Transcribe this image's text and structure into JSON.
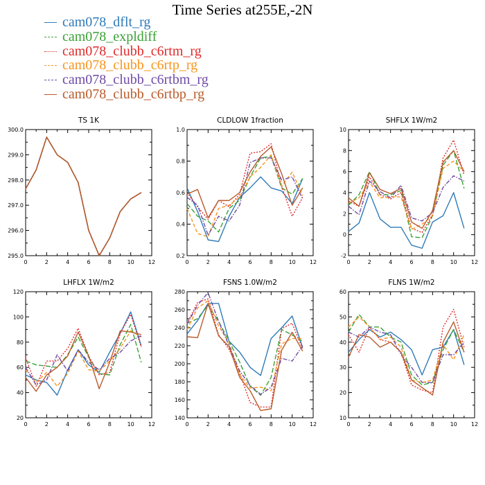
{
  "title": "Time Series at255E,-2N",
  "colors": {
    "cam078_dflt_rg": "#2f7ab8",
    "cam078_expldiff": "#3aa136",
    "cam078_clubb_c6rtm_rg": "#e12a2a",
    "cam078_clubb_c6rtp_rg": "#f7931e",
    "cam078_clubb_c6rtbm_rg": "#6f4aa6",
    "cam078_clubb_c6rtbp_rg": "#b85a2a"
  },
  "legend": [
    {
      "name": "cam078_dflt_rg",
      "color": "#2f7ab8",
      "dash": "solid"
    },
    {
      "name": "cam078_expldiff",
      "color": "#3aa136",
      "dash": "long-dash"
    },
    {
      "name": "cam078_clubb_c6rtm_rg",
      "color": "#e12a2a",
      "dash": "dot"
    },
    {
      "name": "cam078_clubb_c6rtp_rg",
      "color": "#f7931e",
      "dash": "dash"
    },
    {
      "name": "cam078_clubb_c6rtbm_rg",
      "color": "#6f4aa6",
      "dash": "dash-dot"
    },
    {
      "name": "cam078_clubb_c6rtbp_rg",
      "color": "#b85a2a",
      "dash": "solid"
    }
  ],
  "chart_data": [
    {
      "type": "line",
      "title": "TS   1K",
      "x": [
        0,
        1,
        2,
        3,
        4,
        5,
        6,
        7,
        8,
        9,
        10,
        11
      ],
      "xlim": [
        0,
        12
      ],
      "xticks": [
        0,
        2,
        4,
        6,
        8,
        10,
        12
      ],
      "ylim": [
        295.0,
        300.0
      ],
      "yticks": [
        "295.0",
        "296.0",
        "297.0",
        "298.0",
        "299.0",
        "300.0"
      ],
      "series": [
        {
          "name": "cam078_dflt_rg",
          "values": [
            297.65,
            298.4,
            299.7,
            299.0,
            298.7,
            297.9,
            296.0,
            295.0,
            295.7,
            296.75,
            297.25,
            297.5
          ]
        },
        {
          "name": "cam078_expldiff",
          "values": [
            297.65,
            298.4,
            299.7,
            299.0,
            298.7,
            297.9,
            296.0,
            295.0,
            295.7,
            296.75,
            297.25,
            297.5
          ]
        },
        {
          "name": "cam078_clubb_c6rtm_rg",
          "values": [
            297.65,
            298.4,
            299.7,
            299.0,
            298.7,
            297.9,
            296.0,
            295.0,
            295.7,
            296.75,
            297.25,
            297.5
          ]
        },
        {
          "name": "cam078_clubb_c6rtp_rg",
          "values": [
            297.65,
            298.4,
            299.7,
            299.0,
            298.7,
            297.9,
            296.0,
            295.0,
            295.7,
            296.75,
            297.25,
            297.5
          ]
        },
        {
          "name": "cam078_clubb_c6rtbm_rg",
          "values": [
            297.65,
            298.4,
            299.7,
            299.0,
            298.7,
            297.9,
            296.0,
            295.0,
            295.7,
            296.75,
            297.25,
            297.5
          ]
        },
        {
          "name": "cam078_clubb_c6rtbp_rg",
          "values": [
            297.65,
            298.4,
            299.7,
            299.0,
            298.7,
            297.9,
            296.0,
            295.0,
            295.7,
            296.75,
            297.25,
            297.5
          ]
        }
      ]
    },
    {
      "type": "line",
      "title": "CLDLOW   1fraction",
      "x": [
        0,
        1,
        2,
        3,
        4,
        5,
        6,
        7,
        8,
        9,
        10,
        11
      ],
      "xlim": [
        0,
        12
      ],
      "xticks": [
        0,
        2,
        4,
        6,
        8,
        10,
        12
      ],
      "ylim": [
        0.2,
        1.0
      ],
      "yticks": [
        "0.2",
        "0.4",
        "0.6",
        "0.8",
        "1.0"
      ],
      "series": [
        {
          "name": "cam078_dflt_rg",
          "values": [
            0.63,
            0.48,
            0.3,
            0.29,
            0.45,
            0.57,
            0.63,
            0.7,
            0.63,
            0.61,
            0.53,
            0.69
          ]
        },
        {
          "name": "cam078_expldiff",
          "values": [
            0.53,
            0.45,
            0.42,
            0.35,
            0.5,
            0.55,
            0.7,
            0.82,
            0.83,
            0.63,
            0.59,
            0.69
          ]
        },
        {
          "name": "cam078_clubb_c6rtm_rg",
          "values": [
            0.6,
            0.51,
            0.43,
            0.55,
            0.51,
            0.59,
            0.85,
            0.86,
            0.91,
            0.64,
            0.45,
            0.57
          ]
        },
        {
          "name": "cam078_clubb_c6rtp_rg",
          "values": [
            0.5,
            0.34,
            0.32,
            0.5,
            0.52,
            0.57,
            0.7,
            0.76,
            0.84,
            0.64,
            0.73,
            0.58
          ]
        },
        {
          "name": "cam078_clubb_c6rtbm_rg",
          "values": [
            0.57,
            0.52,
            0.33,
            0.45,
            0.42,
            0.52,
            0.79,
            0.82,
            0.82,
            0.68,
            0.7,
            0.56
          ]
        },
        {
          "name": "cam078_clubb_c6rtbp_rg",
          "values": [
            0.59,
            0.62,
            0.44,
            0.55,
            0.55,
            0.6,
            0.73,
            0.83,
            0.89,
            0.72,
            0.52,
            0.63
          ]
        }
      ]
    },
    {
      "type": "line",
      "title": "SHFLX   1W/m2",
      "x": [
        0,
        1,
        2,
        3,
        4,
        5,
        6,
        7,
        8,
        9,
        10,
        11
      ],
      "xlim": [
        0,
        12
      ],
      "xticks": [
        0,
        2,
        4,
        6,
        8,
        10,
        12
      ],
      "ylim": [
        -2,
        10
      ],
      "yticks": [
        "-2",
        "0",
        "2",
        "4",
        "6",
        "8",
        "10"
      ],
      "series": [
        {
          "name": "cam078_dflt_rg",
          "values": [
            0.3,
            1.1,
            4.0,
            1.5,
            0.7,
            0.7,
            -1.0,
            -1.3,
            1.2,
            1.8,
            4.0,
            0.6
          ]
        },
        {
          "name": "cam078_expldiff",
          "values": [
            2.8,
            3.8,
            6.0,
            3.8,
            3.8,
            4.2,
            -0.2,
            -0.3,
            1.8,
            6.6,
            8.0,
            4.4
          ]
        },
        {
          "name": "cam078_clubb_c6rtm_rg",
          "values": [
            3.2,
            2.7,
            5.5,
            3.8,
            3.4,
            4.0,
            0.6,
            0.2,
            1.9,
            7.3,
            9.0,
            5.7
          ]
        },
        {
          "name": "cam078_clubb_c6rtp_rg",
          "values": [
            3.0,
            3.5,
            5.0,
            3.5,
            3.6,
            3.6,
            0.5,
            1.0,
            1.8,
            6.3,
            7.0,
            6.0
          ]
        },
        {
          "name": "cam078_clubb_c6rtbm_rg",
          "values": [
            2.7,
            1.9,
            5.1,
            4.1,
            3.5,
            4.7,
            1.6,
            1.3,
            2.1,
            4.5,
            5.6,
            5.1
          ]
        },
        {
          "name": "cam078_clubb_c6rtbp_rg",
          "values": [
            3.5,
            2.7,
            5.9,
            4.3,
            3.9,
            4.4,
            1.2,
            0.6,
            2.3,
            6.9,
            8.0,
            6.0
          ]
        }
      ]
    },
    {
      "type": "line",
      "title": "LHFLX   1W/m2",
      "x": [
        0,
        1,
        2,
        3,
        4,
        5,
        6,
        7,
        8,
        9,
        10,
        11
      ],
      "xlim": [
        0,
        12
      ],
      "xticks": [
        0,
        2,
        4,
        6,
        8,
        10,
        12
      ],
      "ylim": [
        20,
        120
      ],
      "yticks": [
        "20",
        "40",
        "60",
        "80",
        "100",
        "120"
      ],
      "series": [
        {
          "name": "cam078_dflt_rg",
          "values": [
            54,
            50,
            48,
            38,
            58,
            74,
            62,
            56,
            72,
            87,
            104,
            77
          ]
        },
        {
          "name": "cam078_expldiff",
          "values": [
            65,
            62,
            61,
            60,
            70,
            84,
            68,
            55,
            54,
            78,
            94,
            64
          ]
        },
        {
          "name": "cam078_clubb_c6rtm_rg",
          "values": [
            68,
            45,
            65,
            65,
            75,
            91,
            69,
            54,
            56,
            87,
            102,
            76
          ]
        },
        {
          "name": "cam078_clubb_c6rtp_rg",
          "values": [
            58,
            48,
            56,
            45,
            55,
            73,
            58,
            57,
            65,
            75,
            89,
            84
          ]
        },
        {
          "name": "cam078_clubb_c6rtbm_rg",
          "values": [
            60,
            46,
            50,
            70,
            57,
            74,
            64,
            58,
            67,
            72,
            81,
            85
          ]
        },
        {
          "name": "cam078_clubb_c6rtbp_rg",
          "values": [
            52,
            41,
            54,
            60,
            69,
            88,
            69,
            43,
            64,
            89,
            88,
            86
          ]
        }
      ]
    },
    {
      "type": "line",
      "title": "FSNS   1.0W/m2",
      "x": [
        0,
        1,
        2,
        3,
        4,
        5,
        6,
        7,
        8,
        9,
        10,
        11
      ],
      "xlim": [
        0,
        12
      ],
      "xticks": [
        0,
        2,
        4,
        6,
        8,
        10,
        12
      ],
      "ylim": [
        140,
        280
      ],
      "yticks": [
        "140",
        "160",
        "180",
        "200",
        "220",
        "240",
        "260",
        "280"
      ],
      "series": [
        {
          "name": "cam078_dflt_rg",
          "values": [
            233,
            248,
            267,
            267,
            225,
            213,
            196,
            187,
            228,
            240,
            253,
            218
          ]
        },
        {
          "name": "cam078_expldiff",
          "values": [
            245,
            250,
            265,
            247,
            225,
            202,
            175,
            165,
            185,
            238,
            232,
            225
          ]
        },
        {
          "name": "cam078_clubb_c6rtm_rg",
          "values": [
            245,
            268,
            272,
            232,
            216,
            190,
            157,
            152,
            152,
            239,
            245,
            216
          ]
        },
        {
          "name": "cam078_clubb_c6rtp_rg",
          "values": [
            238,
            262,
            270,
            242,
            223,
            188,
            173,
            174,
            170,
            222,
            228,
            228
          ]
        },
        {
          "name": "cam078_clubb_c6rtbm_rg",
          "values": [
            244,
            265,
            279,
            247,
            220,
            192,
            176,
            166,
            174,
            206,
            203,
            220
          ]
        },
        {
          "name": "cam078_clubb_c6rtbp_rg",
          "values": [
            230,
            229,
            267,
            231,
            219,
            185,
            170,
            148,
            150,
            215,
            235,
            214
          ]
        }
      ]
    },
    {
      "type": "line",
      "title": "FLNS   1W/m2",
      "x": [
        0,
        1,
        2,
        3,
        4,
        5,
        6,
        7,
        8,
        9,
        10,
        11
      ],
      "xlim": [
        0,
        12
      ],
      "xticks": [
        0,
        2,
        4,
        6,
        8,
        10,
        12
      ],
      "ylim": [
        10,
        60
      ],
      "yticks": [
        "10",
        "20",
        "30",
        "40",
        "50",
        "60"
      ],
      "series": [
        {
          "name": "cam078_dflt_rg",
          "values": [
            36,
            41,
            45,
            42,
            44,
            41,
            37,
            27,
            37,
            38,
            45,
            31
          ]
        },
        {
          "name": "cam078_expldiff",
          "values": [
            44,
            51,
            46,
            46,
            42,
            40,
            27,
            23,
            24,
            37,
            45,
            36
          ]
        },
        {
          "name": "cam078_clubb_c6rtm_rg",
          "values": [
            43,
            36,
            46,
            41,
            40,
            36,
            23,
            21,
            20,
            46,
            53,
            38
          ]
        },
        {
          "name": "cam078_clubb_c6rtp_rg",
          "values": [
            46,
            50,
            46,
            41,
            42,
            38,
            25,
            24,
            25,
            39,
            33,
            43
          ]
        },
        {
          "name": "cam078_clubb_c6rtbm_rg",
          "values": [
            44,
            42,
            46,
            44,
            43,
            35,
            30,
            24,
            24,
            35,
            35,
            40
          ]
        },
        {
          "name": "cam078_clubb_c6rtbp_rg",
          "values": [
            34,
            43,
            42,
            38,
            40,
            36,
            25,
            22,
            19,
            40,
            48,
            36
          ]
        }
      ]
    }
  ]
}
